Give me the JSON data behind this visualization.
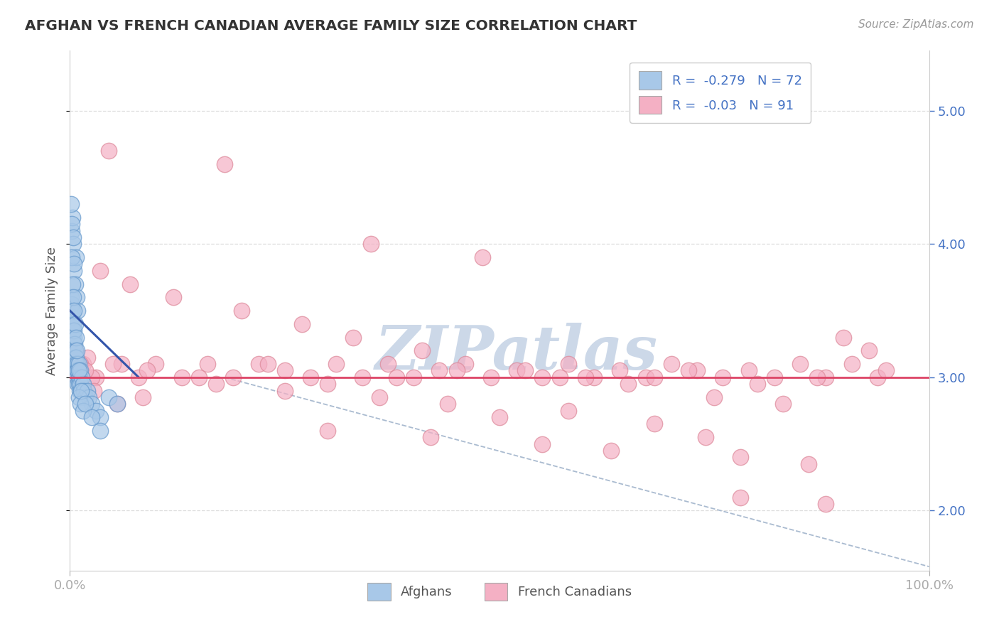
{
  "title": "AFGHAN VS FRENCH CANADIAN AVERAGE FAMILY SIZE CORRELATION CHART",
  "source": "Source: ZipAtlas.com",
  "ylabel": "Average Family Size",
  "y_ticks": [
    2.0,
    3.0,
    4.0,
    5.0
  ],
  "x_range": [
    0.0,
    100.0
  ],
  "y_range": [
    1.55,
    5.45
  ],
  "afghan_color": "#a8c8e8",
  "afghan_edge_color": "#6699cc",
  "french_color": "#f4b0c4",
  "french_edge_color": "#dd8899",
  "afghan_R": -0.279,
  "afghan_N": 72,
  "french_R": -0.03,
  "french_N": 91,
  "watermark": "ZIPatlas",
  "watermark_color": "#ccd8e8",
  "trend_line_blue": "#3355aa",
  "trend_line_pink": "#dd4466",
  "trend_line_dashed_color": "#aabbd0",
  "background_color": "#ffffff",
  "grid_color": "#dddddd",
  "title_color": "#333333",
  "source_color": "#999999",
  "axis_label_color": "#555555",
  "tick_color": "#4472c4",
  "legend_r_color": "#4472c4",
  "afghan_x": [
    0.1,
    0.15,
    0.2,
    0.2,
    0.25,
    0.3,
    0.3,
    0.35,
    0.4,
    0.4,
    0.45,
    0.5,
    0.5,
    0.5,
    0.55,
    0.6,
    0.6,
    0.65,
    0.7,
    0.7,
    0.75,
    0.8,
    0.8,
    0.85,
    0.9,
    0.9,
    1.0,
    1.0,
    1.0,
    1.1,
    1.1,
    1.2,
    1.2,
    1.3,
    1.4,
    1.5,
    1.6,
    1.8,
    2.0,
    2.2,
    2.5,
    3.0,
    3.5,
    4.5,
    5.5,
    0.2,
    0.3,
    0.4,
    0.5,
    0.6,
    0.7,
    0.8,
    0.9,
    1.0,
    1.2,
    1.5,
    0.2,
    0.3,
    0.4,
    0.5,
    0.6,
    0.7,
    0.8,
    1.0,
    1.3,
    1.8,
    2.5,
    3.5,
    0.15,
    0.25,
    0.35,
    0.45
  ],
  "afghan_y": [
    3.5,
    3.6,
    3.55,
    3.45,
    3.4,
    3.5,
    3.3,
    3.35,
    3.4,
    3.25,
    3.3,
    3.35,
    3.2,
    3.1,
    3.25,
    3.2,
    3.15,
    3.1,
    3.15,
    3.05,
    3.1,
    3.05,
    3.0,
    3.1,
    3.05,
    2.95,
    3.0,
    3.1,
    2.95,
    3.0,
    2.9,
    2.95,
    3.05,
    2.9,
    3.0,
    2.95,
    2.9,
    2.85,
    2.9,
    2.85,
    2.8,
    2.75,
    2.7,
    2.85,
    2.8,
    4.1,
    4.2,
    4.0,
    3.8,
    3.7,
    3.9,
    3.6,
    3.5,
    2.85,
    2.8,
    2.75,
    3.9,
    3.7,
    3.6,
    3.5,
    3.4,
    3.3,
    3.2,
    3.05,
    2.9,
    2.8,
    2.7,
    2.6,
    4.3,
    4.15,
    4.05,
    3.85
  ],
  "french_x": [
    0.3,
    0.6,
    0.9,
    1.5,
    2.0,
    3.0,
    4.5,
    6.0,
    8.0,
    10.0,
    13.0,
    16.0,
    19.0,
    22.0,
    25.0,
    28.0,
    31.0,
    34.0,
    37.0,
    40.0,
    43.0,
    46.0,
    49.0,
    52.0,
    55.0,
    58.0,
    61.0,
    64.0,
    67.0,
    70.0,
    73.0,
    76.0,
    79.0,
    82.0,
    85.0,
    88.0,
    91.0,
    94.0,
    18.0,
    35.0,
    48.0,
    3.5,
    7.0,
    12.0,
    20.0,
    27.0,
    33.0,
    41.0,
    53.0,
    60.0,
    68.0,
    75.0,
    83.0,
    90.0,
    0.5,
    1.2,
    2.5,
    5.0,
    9.0,
    15.0,
    23.0,
    30.0,
    38.0,
    45.0,
    57.0,
    65.0,
    72.0,
    80.0,
    87.0,
    95.0,
    30.0,
    42.0,
    55.0,
    63.0,
    78.0,
    86.0,
    50.0,
    68.0,
    74.0,
    58.0,
    44.0,
    36.0,
    25.0,
    17.0,
    8.5,
    5.5,
    2.8,
    1.8,
    93.0,
    88.0,
    78.0
  ],
  "french_y": [
    3.1,
    3.2,
    3.0,
    3.1,
    3.15,
    3.0,
    4.7,
    3.1,
    3.0,
    3.1,
    3.0,
    3.1,
    3.0,
    3.1,
    3.05,
    3.0,
    3.1,
    3.0,
    3.1,
    3.0,
    3.05,
    3.1,
    3.0,
    3.05,
    3.0,
    3.1,
    3.0,
    3.05,
    3.0,
    3.1,
    3.05,
    3.0,
    3.05,
    3.0,
    3.1,
    3.0,
    3.1,
    3.0,
    4.6,
    4.0,
    3.9,
    3.8,
    3.7,
    3.6,
    3.5,
    3.4,
    3.3,
    3.2,
    3.05,
    3.0,
    3.0,
    2.85,
    2.8,
    3.3,
    3.05,
    3.1,
    3.0,
    3.1,
    3.05,
    3.0,
    3.1,
    2.95,
    3.0,
    3.05,
    3.0,
    2.95,
    3.05,
    2.95,
    3.0,
    3.05,
    2.6,
    2.55,
    2.5,
    2.45,
    2.4,
    2.35,
    2.7,
    2.65,
    2.55,
    2.75,
    2.8,
    2.85,
    2.9,
    2.95,
    2.85,
    2.8,
    2.9,
    3.05,
    3.2,
    2.05,
    2.1
  ]
}
